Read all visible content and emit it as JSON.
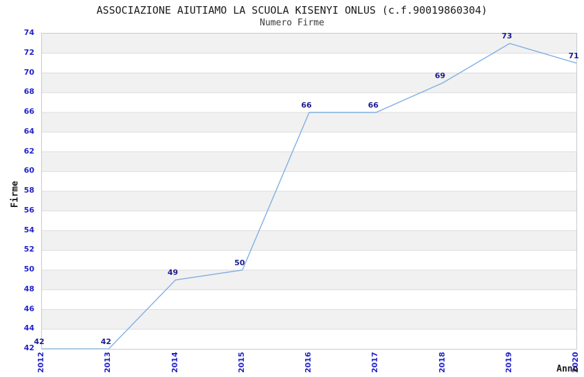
{
  "chart_data": {
    "type": "line",
    "title": "ASSOCIAZIONE AIUTIAMO LA SCUOLA KISENYI ONLUS (c.f.90019860304)",
    "subtitle": "Numero Firme",
    "xlabel": "Anno",
    "ylabel": "Firme",
    "categories": [
      "2012",
      "2013",
      "2014",
      "2015",
      "2016",
      "2017",
      "2018",
      "2019",
      "2020"
    ],
    "series": [
      {
        "name": "Numero Firme",
        "values": [
          42,
          42,
          49,
          50,
          66,
          66,
          69,
          73,
          71
        ]
      }
    ],
    "value_labels": [
      "42",
      "42",
      "49",
      "50",
      "66",
      "66",
      "69",
      "73",
      "71"
    ],
    "ylim": [
      42,
      74
    ],
    "ytick_step": 2,
    "yticks": [
      42,
      44,
      46,
      48,
      50,
      52,
      54,
      56,
      58,
      60,
      62,
      64,
      66,
      68,
      70,
      72,
      74
    ],
    "grid": "horizontal-bands-alternating",
    "legend": "none",
    "colors": {
      "line": "#7fafe3",
      "tick_text": "#2222cc",
      "value_label_text": "#1c1c8f",
      "band_gray": "#f1f1f1",
      "band_white": "#ffffff",
      "gridline": "#dcdcdc",
      "plot_border": "#c9c9c9",
      "background": "#ffffff"
    }
  }
}
